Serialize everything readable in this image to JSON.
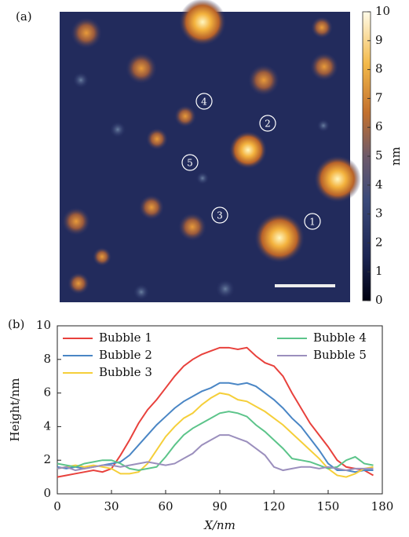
{
  "chart_data": [
    {
      "type": "image",
      "panel_label": "(a)",
      "colorbar_label": "nm",
      "clim": [
        0,
        10
      ],
      "cticks": [
        0,
        1,
        2,
        3,
        4,
        5,
        6,
        7,
        8,
        9,
        10
      ],
      "annotations": [
        "1",
        "2",
        "3",
        "4",
        "5"
      ]
    },
    {
      "type": "line",
      "panel_label": "(b)",
      "xlabel": "X/nm",
      "ylabel": "Height/nm",
      "xlim": [
        0,
        180
      ],
      "xticks": [
        0,
        30,
        60,
        90,
        120,
        150,
        180
      ],
      "ylim": [
        0,
        10
      ],
      "yticks": [
        0,
        2,
        4,
        6,
        8,
        10
      ],
      "x": [
        0,
        5,
        10,
        15,
        20,
        25,
        30,
        35,
        40,
        45,
        50,
        55,
        60,
        65,
        70,
        75,
        80,
        85,
        90,
        95,
        100,
        105,
        110,
        115,
        120,
        125,
        130,
        135,
        140,
        145,
        150,
        155,
        160,
        165,
        170,
        175
      ],
      "series": [
        {
          "name": "Bubble 1",
          "color": "#e8413c",
          "values": [
            1.0,
            1.1,
            1.2,
            1.3,
            1.4,
            1.3,
            1.5,
            2.3,
            3.2,
            4.2,
            5.0,
            5.6,
            6.3,
            7.0,
            7.6,
            8.0,
            8.3,
            8.5,
            8.7,
            8.7,
            8.6,
            8.7,
            8.2,
            7.8,
            7.6,
            7.0,
            6.0,
            5.1,
            4.2,
            3.5,
            2.8,
            2.0,
            1.6,
            1.5,
            1.4,
            1.1
          ]
        },
        {
          "name": "Bubble 2",
          "color": "#4a86c5",
          "values": [
            1.6,
            1.5,
            1.6,
            1.5,
            1.6,
            1.7,
            1.8,
            1.9,
            2.3,
            2.9,
            3.5,
            4.1,
            4.6,
            5.1,
            5.5,
            5.8,
            6.1,
            6.3,
            6.6,
            6.6,
            6.5,
            6.6,
            6.4,
            6.0,
            5.6,
            5.1,
            4.5,
            4.0,
            3.3,
            2.6,
            1.8,
            1.4,
            1.4,
            1.3,
            1.4,
            1.4
          ]
        },
        {
          "name": "Bubble 3",
          "color": "#f5cf3a",
          "values": [
            1.5,
            1.6,
            1.7,
            1.6,
            1.7,
            1.6,
            1.5,
            1.2,
            1.2,
            1.3,
            1.8,
            2.6,
            3.4,
            4.0,
            4.5,
            4.8,
            5.3,
            5.7,
            6.0,
            5.9,
            5.6,
            5.5,
            5.2,
            4.9,
            4.5,
            4.1,
            3.6,
            3.1,
            2.6,
            2.1,
            1.5,
            1.1,
            1.0,
            1.2,
            1.5,
            1.6
          ]
        },
        {
          "name": "Bubble 4",
          "color": "#5cc48a",
          "values": [
            1.8,
            1.7,
            1.6,
            1.8,
            1.9,
            2.0,
            2.0,
            1.8,
            1.5,
            1.4,
            1.5,
            1.6,
            2.2,
            2.9,
            3.5,
            3.9,
            4.2,
            4.5,
            4.8,
            4.9,
            4.8,
            4.6,
            4.1,
            3.7,
            3.2,
            2.7,
            2.1,
            2.0,
            1.9,
            1.7,
            1.5,
            1.6,
            2.0,
            2.2,
            1.8,
            1.7
          ]
        },
        {
          "name": "Bubble 5",
          "color": "#9b8fbd",
          "values": [
            1.5,
            1.6,
            1.4,
            1.5,
            1.6,
            1.7,
            1.7,
            1.6,
            1.7,
            1.8,
            1.9,
            1.8,
            1.7,
            1.8,
            2.1,
            2.4,
            2.9,
            3.2,
            3.5,
            3.5,
            3.3,
            3.1,
            2.7,
            2.3,
            1.6,
            1.4,
            1.5,
            1.6,
            1.6,
            1.5,
            1.6,
            1.5,
            1.4,
            1.5,
            1.5,
            1.5
          ]
        }
      ]
    }
  ]
}
